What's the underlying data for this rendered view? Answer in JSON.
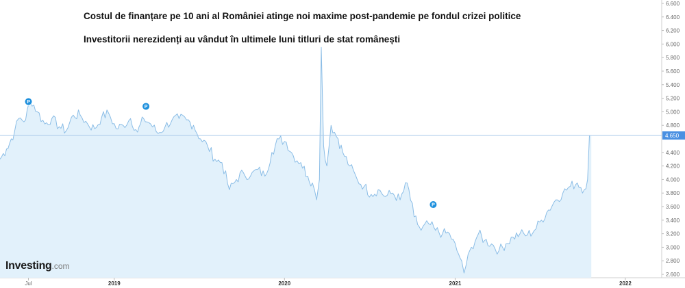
{
  "header": {
    "title": "Costul de finanțare pe 10 ani al României atinge noi maxime post-pandemie pe fondul crizei politice",
    "subtitle": "Investitorii nerezidenți au vândut în ultimele luni titluri de stat românești"
  },
  "logo": {
    "word": "Investing",
    "suffix": ".com"
  },
  "colors": {
    "line": "#8bbde6",
    "fill": "#e2f1fb",
    "current_badge": "#4a90e2",
    "event_marker": "#1e90dd",
    "grid": "#e6e6e6"
  },
  "chart_data": {
    "type": "area",
    "title": "Costul de finanțare pe 10 ani al României atinge noi maxime post-pandemie pe fondul crizei politice",
    "subtitle": "Investitorii nerezidenți au vândut în ultimele luni titluri de stat românești",
    "x_ticks": [
      "Jul",
      "2019",
      "2020",
      "2021",
      "2022"
    ],
    "x_range": [
      "2018-05-01",
      "2022-03-20"
    ],
    "ylim": [
      2.55,
      6.65
    ],
    "y_axis_position": "right",
    "y_ticks": [
      "2.600",
      "2.800",
      "3.000",
      "3.200",
      "3.400",
      "3.600",
      "3.800",
      "4.000",
      "4.200",
      "4.400",
      "4.650",
      "4.800",
      "5.000",
      "5.200",
      "5.400",
      "5.600",
      "5.800",
      "6.000",
      "6.200",
      "6.400",
      "6.600"
    ],
    "current_value": "4.650",
    "grid": false,
    "event_marker_label": "P",
    "event_markers": [
      {
        "date": "2018-07-01",
        "y": 5.15
      },
      {
        "date": "2019-03-10",
        "y": 5.08
      },
      {
        "date": "2020-11-15",
        "y": 3.63
      }
    ],
    "series": [
      {
        "x": [
          "2018-05-01",
          "2018-05-15",
          "2018-06-01",
          "2018-06-10",
          "2018-06-25",
          "2018-07-05",
          "2018-07-20",
          "2018-08-05",
          "2018-08-20",
          "2018-09-05",
          "2018-09-20",
          "2018-10-05",
          "2018-10-20",
          "2018-11-05",
          "2018-11-20",
          "2018-12-05",
          "2018-12-20",
          "2019-01-05",
          "2019-01-20",
          "2019-02-05",
          "2019-02-20",
          "2019-03-05",
          "2019-03-20",
          "2019-04-05",
          "2019-04-20",
          "2019-05-05",
          "2019-05-20",
          "2019-06-05",
          "2019-06-20",
          "2019-07-05",
          "2019-07-20",
          "2019-08-05",
          "2019-08-20",
          "2019-09-05",
          "2019-09-20",
          "2019-10-05",
          "2019-10-20",
          "2019-11-05",
          "2019-11-20",
          "2019-12-05",
          "2019-12-20",
          "2020-01-05",
          "2020-01-20",
          "2020-02-05",
          "2020-02-20",
          "2020-03-01",
          "2020-03-10",
          "2020-03-16",
          "2020-03-20",
          "2020-03-25",
          "2020-04-01",
          "2020-04-10",
          "2020-04-25",
          "2020-05-05",
          "2020-05-20",
          "2020-06-05",
          "2020-06-20",
          "2020-07-05",
          "2020-07-20",
          "2020-08-05",
          "2020-08-20",
          "2020-09-05",
          "2020-09-20",
          "2020-10-05",
          "2020-10-20",
          "2020-11-05",
          "2020-11-20",
          "2020-12-05",
          "2020-12-20",
          "2021-01-05",
          "2021-01-15",
          "2021-01-20",
          "2021-01-25",
          "2021-02-05",
          "2021-02-20",
          "2021-03-05",
          "2021-03-20",
          "2021-04-05",
          "2021-04-20",
          "2021-05-05",
          "2021-05-20",
          "2021-06-05",
          "2021-06-20",
          "2021-07-05",
          "2021-07-20",
          "2021-08-05",
          "2021-08-20",
          "2021-09-05",
          "2021-09-20",
          "2021-10-05",
          "2021-10-12",
          "2021-10-16",
          "2021-10-20"
        ],
        "y": [
          4.3,
          4.45,
          4.7,
          4.9,
          4.88,
          5.2,
          5.0,
          4.82,
          4.9,
          4.78,
          4.72,
          4.95,
          4.95,
          4.82,
          4.75,
          4.92,
          4.98,
          4.75,
          4.8,
          4.9,
          4.7,
          4.9,
          4.82,
          4.68,
          4.78,
          4.88,
          4.9,
          4.88,
          4.8,
          4.6,
          4.5,
          4.3,
          4.25,
          3.85,
          4.0,
          4.1,
          4.05,
          4.15,
          4.05,
          4.4,
          4.6,
          4.55,
          4.35,
          4.25,
          4.05,
          3.95,
          3.7,
          4.0,
          5.95,
          4.5,
          4.2,
          4.8,
          4.6,
          4.4,
          4.2,
          4.0,
          3.9,
          3.78,
          3.85,
          3.75,
          3.8,
          3.7,
          3.95,
          3.45,
          3.25,
          3.35,
          3.25,
          3.2,
          3.2,
          2.95,
          2.8,
          2.62,
          2.75,
          3.0,
          3.2,
          3.1,
          3.05,
          2.95,
          3.05,
          3.15,
          3.2,
          3.18,
          3.25,
          3.4,
          3.55,
          3.7,
          3.8,
          3.9,
          3.95,
          3.85,
          4.0,
          4.65,
          4.65
        ]
      }
    ]
  }
}
